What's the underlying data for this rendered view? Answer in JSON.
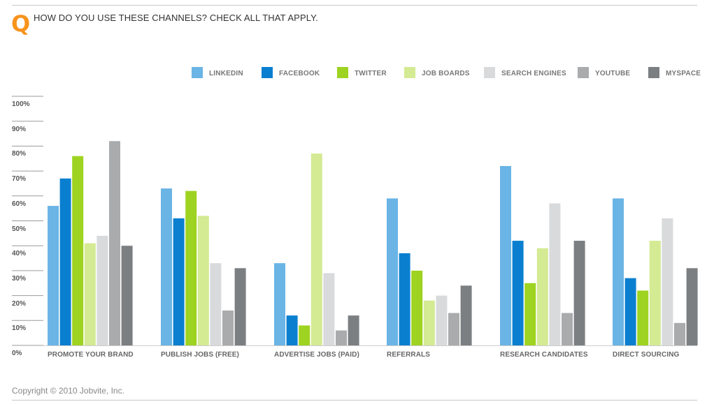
{
  "header": {
    "logo_letter": "Q",
    "question": "HOW DO YOU USE THESE CHANNELS? CHECK ALL THAT APPLY."
  },
  "footer": {
    "copyright": "Copyright © 2010 Jobvite, Inc."
  },
  "chart_data": {
    "type": "bar",
    "title": "",
    "xlabel": "",
    "ylabel": "",
    "ylim": [
      0,
      100
    ],
    "y_ticks": [
      "100%",
      "90%",
      "80%",
      "70%",
      "60%",
      "50%",
      "40%",
      "30%",
      "20%",
      "10%",
      "0%"
    ],
    "grid": true,
    "legend_position": "top-right",
    "categories": [
      "PROMOTE YOUR BRAND",
      "PUBLISH JOBS (FREE)",
      "ADVERTISE JOBS (PAID)",
      "REFERRALS",
      "RESEARCH CANDIDATES",
      "DIRECT SOURCING"
    ],
    "series": [
      {
        "name": "LINKEDIN",
        "color": "#6ab4e6",
        "values": [
          56,
          63,
          33,
          59,
          72,
          59
        ]
      },
      {
        "name": "FACEBOOK",
        "color": "#0a7fd0",
        "values": [
          67,
          51,
          12,
          37,
          42,
          27
        ]
      },
      {
        "name": "TWITTER",
        "color": "#9ed321",
        "values": [
          76,
          62,
          8,
          30,
          25,
          22
        ]
      },
      {
        "name": "JOB BOARDS",
        "color": "#d4ea93",
        "values": [
          41,
          52,
          77,
          18,
          39,
          42
        ]
      },
      {
        "name": "SEARCH ENGINES",
        "color": "#d9dadc",
        "values": [
          44,
          33,
          29,
          20,
          57,
          51
        ]
      },
      {
        "name": "YOUTUBE",
        "color": "#a9abad",
        "values": [
          82,
          14,
          6,
          13,
          13,
          9
        ]
      },
      {
        "name": "MYSPACE",
        "color": "#7c7f82",
        "values": [
          40,
          31,
          12,
          24,
          42,
          31
        ]
      }
    ]
  }
}
